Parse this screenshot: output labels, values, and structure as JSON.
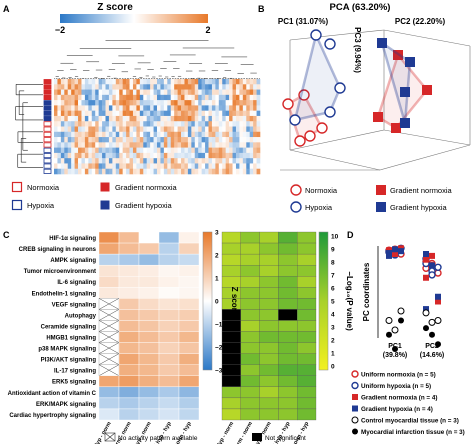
{
  "panels": {
    "a": {
      "letter": "A",
      "colorbar": {
        "title": "Z score",
        "min_label": "−2",
        "max_label": "2"
      },
      "legend": [
        {
          "label": "Normoxia",
          "marker": "open-square",
          "color": "#d62728"
        },
        {
          "label": "Gradient normoxia",
          "marker": "filled-square",
          "color": "#d62728"
        },
        {
          "label": "Hypoxia",
          "marker": "open-square",
          "color": "#1f3a93"
        },
        {
          "label": "Gradient hypoxia",
          "marker": "filled-square",
          "color": "#1f3a93"
        }
      ]
    },
    "b": {
      "letter": "B",
      "title": "PCA (63.20%)",
      "pc1": "PC1 (31.07%)",
      "pc2": "PC2 (22.20%)",
      "pc3": "PC3 (9.94%)",
      "legend": [
        {
          "label": "Normoxia",
          "marker": "open-circle",
          "color": "#d62728"
        },
        {
          "label": "Gradient normoxia",
          "marker": "filled-square",
          "color": "#d62728"
        },
        {
          "label": "Hypoxia",
          "marker": "open-circle",
          "color": "#1f3a93"
        },
        {
          "label": "Gradient hypoxia",
          "marker": "filled-square",
          "color": "#1f3a93"
        }
      ]
    },
    "c": {
      "letter": "C",
      "zscore_bar": {
        "title": "Z score",
        "ticks": [
          "3",
          "2",
          "1",
          "0",
          "−1",
          "−2",
          "−3"
        ]
      },
      "pvalue_bar": {
        "title": "−Log₁₀(P value)",
        "ticks": [
          "10",
          "9",
          "8",
          "7",
          "6",
          "5",
          "4",
          "3",
          "2",
          "1",
          "0"
        ]
      },
      "no_activity_label": "No activity pattern available",
      "not_significant_label": "Not significant"
    },
    "d": {
      "letter": "D",
      "ylabel": "PC coordinates",
      "x_labels": [
        "PC1\n(39.8%)",
        "PC2\n(14.6%)"
      ],
      "legend": [
        {
          "label": "Uniform normoxia (n = 5)",
          "marker": "open-circle",
          "color": "#d62728"
        },
        {
          "label": "Uniform hypoxia (n = 5)",
          "marker": "open-circle",
          "color": "#1f3a93"
        },
        {
          "label": "Gradient normoxia (n = 4)",
          "marker": "filled-square",
          "color": "#d62728"
        },
        {
          "label": "Gradient hypoxia (n = 4)",
          "marker": "filled-square",
          "color": "#1f3a93"
        },
        {
          "label": "Control myocardial tissue (n = 3)",
          "marker": "open-circle-black",
          "color": "#000000"
        },
        {
          "label": "Myocardial infarction tissue (n = 3)",
          "marker": "filled-circle-black",
          "color": "#000000"
        }
      ]
    }
  },
  "chart_data": [
    {
      "panel": "A",
      "type": "heatmap",
      "title": "",
      "colorbar_range": [
        -2,
        2
      ],
      "row_groups": [
        "Gradient normoxia",
        "Gradient normoxia",
        "Gradient normoxia",
        "Gradient normoxia",
        "Gradient hypoxia",
        "Gradient hypoxia",
        "Gradient hypoxia",
        "Gradient hypoxia",
        "Normoxia",
        "Normoxia",
        "Normoxia",
        "Normoxia",
        "Normoxia",
        "Hypoxia",
        "Hypoxia",
        "Hypoxia",
        "Hypoxia",
        "Hypoxia"
      ]
    },
    {
      "panel": "B",
      "type": "scatter",
      "title": "PCA (63.20%)",
      "axes": [
        "PC1 (31.07%)",
        "PC2 (22.20%)",
        "PC3 (9.94%)"
      ]
    },
    {
      "panel": "C",
      "type": "heatmap",
      "title": "",
      "rows": [
        "HIF-1α signaling",
        "CREB signaling in neurons",
        "AMPK signaling",
        "Tumor microenvironment",
        "IL-6 signaling",
        "Endothelin-1 signaling",
        "VEGF signaling",
        "Autophagy",
        "Ceramide signaling",
        "HMGB1 signaling",
        "p38 MAPK signaling",
        "PI3K/AKT signaling",
        "IL-17 signaling",
        "ERK5 signaling",
        "Antioxidant action of vitamin C",
        "ERK/MAPK signaling",
        "Cardiac hypertrophy signaling"
      ],
      "columns": [
        "Hyp - norm",
        "Grad norm - norm",
        "Grad hyp - norm",
        "Grad hyp - hyp",
        "Grad norm - hyp"
      ],
      "zscore_range": [
        -3,
        3
      ],
      "zscore": [
        [
          2.5,
          1.5,
          0.0,
          -1.5,
          0.3
        ],
        [
          2.0,
          1.5,
          1.2,
          -1.0,
          1.0
        ],
        [
          -1.0,
          -1.2,
          -1.5,
          -1.0,
          -0.8
        ],
        [
          0.6,
          0.5,
          0.4,
          0.2,
          0.3
        ],
        [
          0.8,
          0.5,
          0.5,
          0.3,
          0.2
        ],
        [
          0.5,
          0.4,
          0.3,
          0.1,
          0.2
        ],
        [
          null,
          1.2,
          0.8,
          0.6,
          0.7
        ],
        [
          null,
          1.4,
          1.2,
          1.0,
          1.1
        ],
        [
          null,
          1.5,
          1.3,
          1.0,
          1.2
        ],
        [
          null,
          1.8,
          1.5,
          1.2,
          1.6
        ],
        [
          null,
          1.6,
          1.4,
          1.0,
          1.3
        ],
        [
          null,
          2.0,
          1.6,
          1.2,
          1.8
        ],
        [
          null,
          1.8,
          1.6,
          1.2,
          1.5
        ],
        [
          2.0,
          2.2,
          1.8,
          1.5,
          2.0
        ],
        [
          -1.5,
          -1.8,
          -1.5,
          -1.2,
          -1.6
        ],
        [
          -1.0,
          -1.2,
          -1.0,
          -0.8,
          -1.1
        ],
        [
          -0.5,
          -1.0,
          -0.8,
          -0.6,
          -0.9
        ]
      ],
      "pvalue_range": [
        0,
        10
      ],
      "neg_log10_p": [
        [
          4,
          6,
          5,
          8,
          6
        ],
        [
          5,
          5,
          6,
          7,
          6
        ],
        [
          4,
          5,
          5,
          6,
          5
        ],
        [
          5,
          6,
          5,
          6,
          6
        ],
        [
          4,
          5,
          6,
          7,
          5
        ],
        [
          5,
          6,
          6,
          7,
          6
        ],
        [
          5,
          6,
          6,
          7,
          7
        ],
        [
          null,
          6,
          6,
          null,
          7
        ],
        [
          null,
          5,
          6,
          6,
          6
        ],
        [
          null,
          6,
          7,
          7,
          7
        ],
        [
          null,
          6,
          6,
          7,
          6
        ],
        [
          null,
          7,
          6,
          7,
          7
        ],
        [
          null,
          6,
          7,
          8,
          8
        ],
        [
          null,
          7,
          6,
          7,
          8
        ],
        [
          6,
          6,
          5,
          6,
          7
        ],
        [
          5,
          6,
          6,
          6,
          7
        ],
        [
          4,
          6,
          6,
          6,
          7
        ]
      ]
    },
    {
      "panel": "D",
      "type": "scatter",
      "title": "",
      "ylabel": "PC coordinates",
      "categories": [
        "PC1 (39.8%)",
        "PC2 (14.6%)"
      ],
      "series": [
        {
          "name": "Uniform normoxia (n = 5)",
          "pc1": [
            0.42,
            0.45,
            0.4,
            0.44,
            0.41
          ],
          "pc2": [
            0.25,
            0.3,
            0.2,
            0.32,
            0.28
          ]
        },
        {
          "name": "Uniform hypoxia (n = 5)",
          "pc1": [
            0.43,
            0.39,
            0.46,
            0.42,
            0.4
          ],
          "pc2": [
            0.35,
            0.22,
            0.26,
            0.3,
            0.18
          ]
        },
        {
          "name": "Gradient normoxia (n = 4)",
          "pc1": [
            0.44,
            0.4,
            0.46,
            0.42
          ],
          "pc2": [
            0.15,
            0.38,
            -0.1,
            0.34
          ]
        },
        {
          "name": "Gradient hypoxia (n = 4)",
          "pc1": [
            0.41,
            0.45,
            0.43,
            0.38
          ],
          "pc2": [
            0.4,
            0.28,
            -0.05,
            -0.18
          ]
        },
        {
          "name": "Control myocardial tissue (n = 3)",
          "pc1": [
            -0.3,
            -0.4,
            -0.2
          ],
          "pc2": [
            -0.22,
            -0.32,
            -0.3
          ]
        },
        {
          "name": "Myocardial infarction tissue (n = 3)",
          "pc1": [
            -0.45,
            -0.6,
            -0.3
          ],
          "pc2": [
            -0.38,
            -0.45,
            -0.55
          ]
        }
      ]
    }
  ]
}
